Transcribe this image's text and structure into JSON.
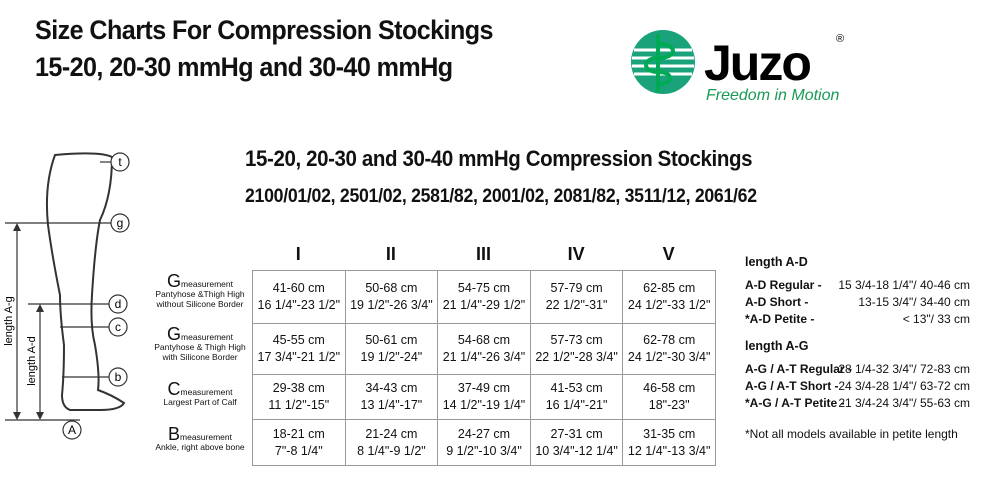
{
  "header": {
    "title_lines": [
      "Size Charts For Compression Stockings",
      "15-20, 20-30 mmHg and 30-40 mmHg"
    ]
  },
  "logo": {
    "brand": "Juzo",
    "mark": "®",
    "tagline": "Freedom in Motion"
  },
  "diagram": {
    "points": [
      "t",
      "g",
      "d",
      "c",
      "b",
      "A"
    ],
    "lengths": [
      "length A-g",
      "length A-d"
    ]
  },
  "table": {
    "title": "15-20, 20-30 and 30-40 mmHg Compression Stockings",
    "models": "2100/01/02, 2501/02, 2581/82, 2001/02, 2081/82, 3511/12, 2061/62",
    "columns": [
      "I",
      "II",
      "III",
      "IV",
      "V"
    ],
    "rows": [
      {
        "letter": "G",
        "suffix": "measurement",
        "description": [
          "Pantyhose &Thigh High",
          "without Silicone Border"
        ],
        "cells": [
          [
            "41-60 cm",
            "16 1/4\"-23 1/2\""
          ],
          [
            "50-68 cm",
            "19 1/2\"-26 3/4\""
          ],
          [
            "54-75 cm",
            "21 1/4\"-29 1/2\""
          ],
          [
            "57-79 cm",
            "22 1/2\"-31\""
          ],
          [
            "62-85 cm",
            "24 1/2\"-33 1/2\""
          ]
        ]
      },
      {
        "letter": "G",
        "suffix": "measurement",
        "description": [
          "Pantyhose & Thigh High",
          "with Silicone Border"
        ],
        "cells": [
          [
            "45-55 cm",
            "17 3/4\"-21 1/2\""
          ],
          [
            "50-61 cm",
            "19 1/2\"-24\""
          ],
          [
            "54-68 cm",
            "21 1/4\"-26 3/4\""
          ],
          [
            "57-73 cm",
            "22 1/2\"-28 3/4\""
          ],
          [
            "62-78 cm",
            "24 1/2\"-30 3/4\""
          ]
        ]
      },
      {
        "letter": "C",
        "suffix": "measurement",
        "description": [
          "Largest Part of Calf"
        ],
        "cells": [
          [
            "29-38 cm",
            "11 1/2\"-15\""
          ],
          [
            "34-43 cm",
            "13 1/4\"-17\""
          ],
          [
            "37-49 cm",
            "14 1/2\"-19 1/4\""
          ],
          [
            "41-53 cm",
            "16 1/4\"-21\""
          ],
          [
            "46-58 cm",
            "18\"-23\""
          ]
        ]
      },
      {
        "letter": "B",
        "suffix": "measurement",
        "description": [
          "Ankle, right above bone"
        ],
        "cells": [
          [
            "18-21 cm",
            "7\"-8 1/4\""
          ],
          [
            "21-24 cm",
            "8 1/4\"-9 1/2\""
          ],
          [
            "24-27 cm",
            "9 1/2\"-10 3/4\""
          ],
          [
            "27-31 cm",
            "10 3/4\"-12 1/4\""
          ],
          [
            "31-35 cm",
            "12 1/4\"-13 3/4\""
          ]
        ]
      }
    ]
  },
  "lengths": [
    {
      "title": "length A-D",
      "rows": [
        {
          "label": "A-D Regular -",
          "value": "15 3/4-18 1/4\"/ 40-46 cm"
        },
        {
          "label": "A-D Short -",
          "value": "13-15 3/4\"/ 34-40 cm"
        },
        {
          "label": "*A-D Petite -",
          "value": "< 13\"/ 33 cm"
        }
      ]
    },
    {
      "title": "length A-G",
      "rows": [
        {
          "label": "A-G / A-T Regular -",
          "value": "28 1/4-32 3/4\"/ 72-83 cm"
        },
        {
          "label": "A-G / A-T Short -",
          "value": "24 3/4-28 1/4\"/ 63-72 cm"
        },
        {
          "label": "*A-G / A-T Petite -",
          "value": "21 3/4-24 3/4\"/ 55-63 cm"
        }
      ]
    }
  ],
  "footnote": "*Not all models available in petite length"
}
